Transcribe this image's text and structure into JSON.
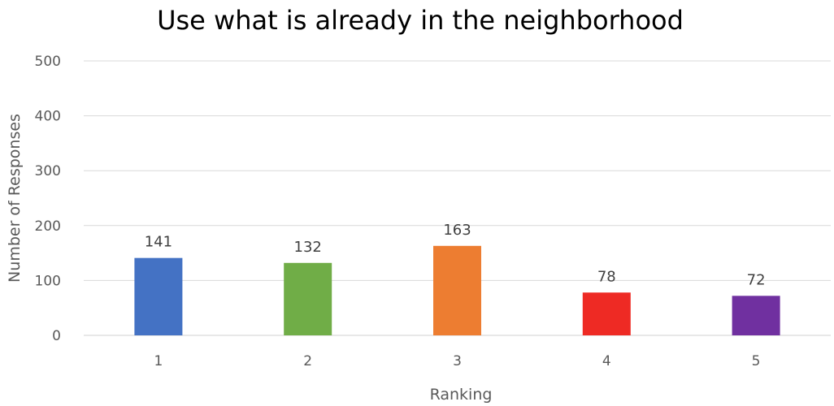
{
  "chart_data": {
    "type": "bar",
    "title": "Use what is already in the neighborhood",
    "xlabel": "Ranking",
    "ylabel": "Number of Responses",
    "categories": [
      "1",
      "2",
      "3",
      "4",
      "5"
    ],
    "values": [
      141,
      132,
      163,
      78,
      72
    ],
    "colors": [
      "#4472c4",
      "#70ad47",
      "#ed7d31",
      "#ee2a24",
      "#7030a0"
    ],
    "ylim": [
      0,
      500
    ],
    "yticks": [
      0,
      100,
      200,
      300,
      400,
      500
    ],
    "grid": true,
    "legend": "none"
  }
}
